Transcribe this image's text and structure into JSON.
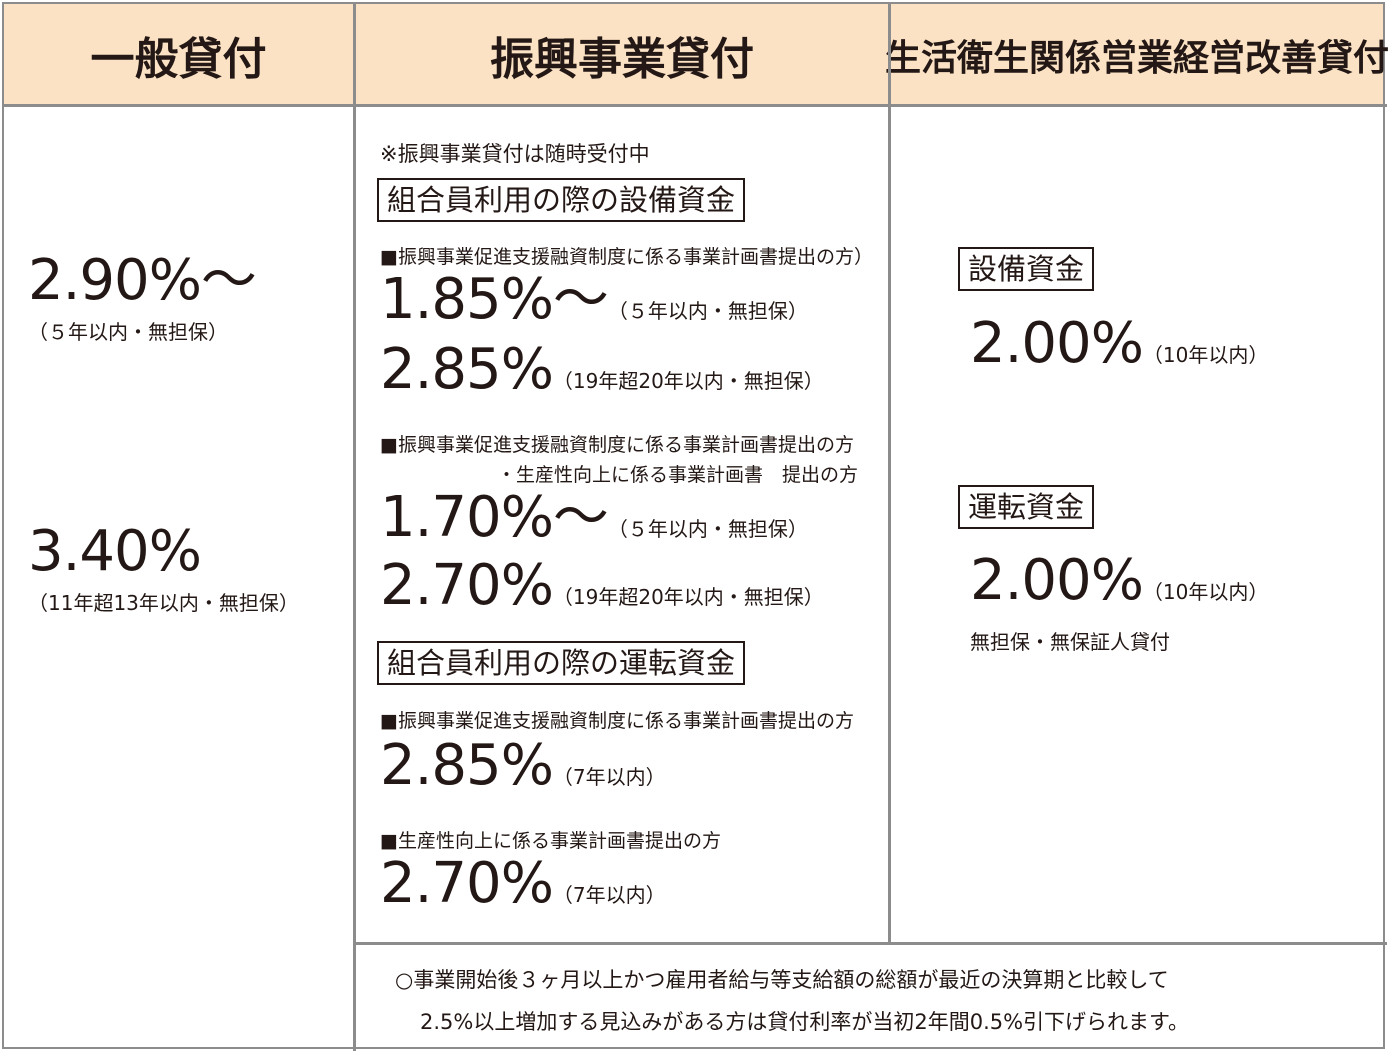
{
  "headers": {
    "general": "一般貸付",
    "promotion": "振興事業貸付",
    "sanitation": "生活衛生関係営業経営改善貸付"
  },
  "general": {
    "rate1": "2.90%〜",
    "term1": "（５年以内・無担保）",
    "rate2": "3.40%",
    "term2": "（11年超13年以内・無担保）"
  },
  "promotion": {
    "notice": "※振興事業貸付は随時受付中",
    "equipment_title": "組合員利用の際の設備資金",
    "eq_case1": "■振興事業促進支援融資制度に係る事業計画書提出の方）",
    "eq_case1_rate1": "1.85%〜",
    "eq_case1_term1": "（５年以内・無担保）",
    "eq_case1_rate2": "2.85%",
    "eq_case1_term2": "（19年超20年以内・無担保）",
    "eq_case2_line1": "■振興事業促進支援融資制度に係る事業計画書提出の方",
    "eq_case2_line2": "・生産性向上に係る事業計画書　提出の方",
    "eq_case2_rate1": "1.70%〜",
    "eq_case2_term1": "（５年以内・無担保）",
    "eq_case2_rate2": "2.70%",
    "eq_case2_term2": "（19年超20年以内・無担保）",
    "working_title": "組合員利用の際の運転資金",
    "wk_case1": "■振興事業促進支援融資制度に係る事業計画書提出の方",
    "wk_case1_rate": "2.85%",
    "wk_case1_term": "（7年以内）",
    "wk_case2": "■生産性向上に係る事業計画書提出の方",
    "wk_case2_rate": "2.70%",
    "wk_case2_term": "（7年以内）"
  },
  "sanitation": {
    "equipment_title": "設備資金",
    "equipment_rate": "2.00%",
    "equipment_term": "（10年以内）",
    "working_title": "運転資金",
    "working_rate": "2.00%",
    "working_term": "（10年以内）",
    "working_note": "無担保・無保証人貸付"
  },
  "footnote": {
    "line1": "○事業開始後３ヶ月以上かつ雇用者給与等支給額の総額が最近の決算期と比較して",
    "line2": "2.5%以上増加する見込みがある方は貸付利率が当初2年間0.5%引下げられます。"
  }
}
